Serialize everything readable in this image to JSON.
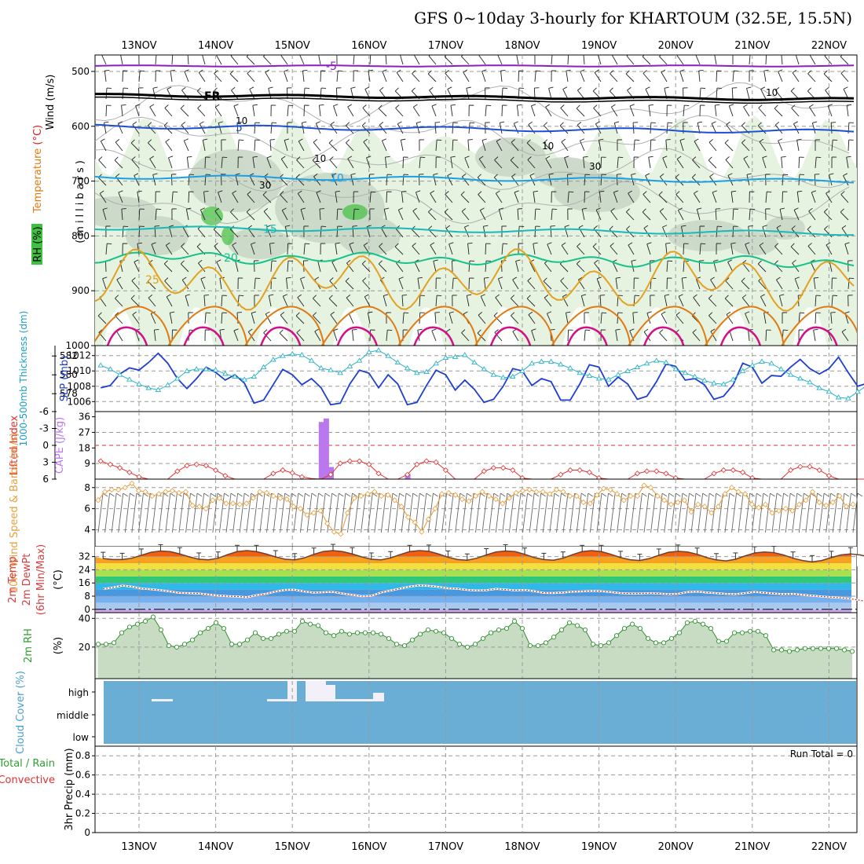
{
  "title": "GFS 0~10day 3-hourly for KHARTOUM (32.5E, 15.5N)",
  "date_labels": [
    "13NOV",
    "14NOV",
    "15NOV",
    "16NOV",
    "17NOV",
    "18NOV",
    "19NOV",
    "20NOV",
    "21NOV",
    "22NOV"
  ],
  "colors": {
    "purple": "#8a1fc2",
    "black": "#000000",
    "blue": "#1f4fd0",
    "sky": "#1aa0e6",
    "teal": "#1bb8b8",
    "green": "#14c28a",
    "orange": "#e5a020",
    "darkorange": "#e07a14",
    "magenta": "#d40f8a",
    "rhgreen": "#40c040",
    "cloudblue": "#6aaed6",
    "slp": "#1f3fd0",
    "thick": "#2ab4c4",
    "li": "#e03030",
    "cape": "#bb77ee",
    "wind": "#e8a040"
  },
  "chart_data": [
    {
      "id": "upper_air",
      "type": "contour",
      "ylabel_parts": [
        "RH (%)",
        "Temperature",
        "(°C)",
        "Wind",
        "(m/s)",
        "(millibars)"
      ],
      "y_ticks": [
        "500",
        "600",
        "700",
        "800",
        "900",
        "1000"
      ],
      "ylim": [
        1000,
        470
      ],
      "temperature_contours": [
        {
          "label": "-5",
          "value": -5,
          "level_mb": 490
        },
        {
          "label": "FR",
          "value": 0,
          "level_mb": 543
        },
        {
          "label": "5",
          "value": 5,
          "level_mb": 600
        },
        {
          "label": "10",
          "value": 10,
          "level_mb": 692
        },
        {
          "label": "15",
          "value": 15,
          "level_mb": 785
        },
        {
          "label": "20",
          "value": 20,
          "level_mb": 838
        },
        {
          "label": "25",
          "value": 25,
          "level_mb": 880
        }
      ],
      "rh_labels": [
        "10",
        "30"
      ]
    },
    {
      "id": "thickness_slp",
      "type": "line",
      "ylabel_left": "1000-500mb Thickness (dm)",
      "ylabel_right": "SLP (mb)",
      "left_ticks": [
        "582",
        "580",
        "578"
      ],
      "right_ticks": [
        "1012",
        "1010",
        "1008",
        "1006"
      ],
      "series": [
        {
          "name": "SLP (mb)",
          "values": [
            1007.8,
            1008.1,
            1009.6,
            1010.4,
            1010.1,
            1011.1,
            1012.3,
            1011.0,
            1009.0,
            1007.7,
            1009.0,
            1010.5,
            1009.8,
            1008.8,
            1009.5,
            1008.4,
            1005.8,
            1006.2,
            1008.2,
            1010.2,
            1009.5,
            1008.2,
            1009.0,
            1007.8,
            1005.6,
            1005.8,
            1008.3,
            1010.1,
            1009.7,
            1007.8,
            1009.5,
            1008.3,
            1005.6,
            1005.9,
            1008.1,
            1010.1,
            1009.5,
            1007.5,
            1008.8,
            1007.6,
            1005.9,
            1006.3,
            1008.0,
            1010.3,
            1010.0,
            1008.1,
            1009.0,
            1008.6,
            1006.2,
            1006.2,
            1008.3,
            1010.8,
            1010.5,
            1008.0,
            1009.2,
            1008.3,
            1006.3,
            1006.7,
            1008.6,
            1010.9,
            1010.6,
            1008.8,
            1009.0,
            1008.2,
            1006.3,
            1006.7,
            1008.2,
            1011.0,
            1010.5,
            1008.4,
            1009.4,
            1009.3,
            1010.5,
            1011.5,
            1010.3,
            1009.6,
            1010.3,
            1011.8,
            1009.8,
            1008.0,
            1008.4,
            1010.7,
            1011.0,
            1009.1,
            1009.3,
            1007.2,
            1007.1,
            1009.1,
            1009.8,
            1010.3,
            1009.4,
            1010.2,
            1012.0
          ]
        },
        {
          "name": "1000-500mb Thickness (dm)",
          "values": [
            581.0,
            580.6,
            580.0,
            579.5,
            579.0,
            578.6,
            578.4,
            578.9,
            579.6,
            580.4,
            580.6,
            580.6,
            580.5,
            580.1,
            579.8,
            579.5,
            579.8,
            580.8,
            581.6,
            582.0,
            582.2,
            582.1,
            581.5,
            580.7,
            580.5,
            580.2,
            580.9,
            581.5,
            582.4,
            582.6,
            582.0,
            581.3,
            580.7,
            580.2,
            580.3,
            581.2,
            581.8,
            581.9,
            582.1,
            581.3,
            580.6,
            580.0,
            579.7,
            579.8,
            580.4,
            581.2,
            581.4,
            581.4,
            581.1,
            580.7,
            580.2,
            579.9,
            579.6,
            579.5,
            580.0,
            580.4,
            580.8,
            581.2,
            581.5,
            581.3,
            580.6,
            580.2,
            579.8,
            579.4,
            579.1,
            579.0,
            579.5,
            580.4,
            581.0,
            581.4,
            581.2,
            580.6,
            580.0,
            579.6,
            579.2,
            578.6,
            578.2,
            577.6,
            577.5,
            578.2,
            578.9,
            579.4,
            579.3,
            578.6,
            577.9,
            577.2,
            576.7,
            576.9,
            577.4,
            577.9,
            577.8,
            577.3,
            576.8,
            576.5,
            576.5,
            577.0
          ]
        }
      ]
    },
    {
      "id": "stability",
      "type": "bar+line",
      "ylabel_left": "Lifted Index",
      "ylabel_right": "CAPE (J/kg)",
      "left_ticks": [
        "-6",
        "-3",
        "0",
        "3",
        "6"
      ],
      "right_ticks": [
        "36",
        "27",
        "18",
        "9"
      ],
      "series": [
        {
          "name": "CAPE (J/kg)",
          "bars": [
            {
              "t": 23.0,
              "value": 33
            },
            {
              "t": 23.5,
              "value": 35
            },
            {
              "t": 24.0,
              "value": 7
            },
            {
              "t": 32.0,
              "value": 3
            }
          ]
        },
        {
          "name": "Lifted Index",
          "values": [
            2.8,
            3.4,
            4.0,
            4.8,
            5.6,
            6.0,
            6.0,
            6.0,
            4.6,
            3.6,
            3.4,
            3.6,
            4.4,
            5.4,
            6.0,
            6.0,
            6.0,
            6.0,
            5.0,
            4.4,
            4.9,
            5.6,
            5.9,
            6.0,
            5.2,
            3.2,
            2.8,
            2.8,
            3.4,
            5.0,
            6.0,
            6.0,
            5.2,
            3.4,
            2.8,
            3.0,
            4.4,
            6.0,
            6.0,
            6.0,
            4.6,
            4.0,
            4.0,
            4.4,
            5.8,
            6.0,
            6.0,
            6.0,
            5.2,
            4.4,
            4.4,
            4.8,
            5.8,
            6.0,
            6.0,
            6.0,
            5.0,
            4.6,
            4.6,
            5.0,
            5.8,
            6.0,
            6.0,
            6.0,
            5.0,
            4.4,
            4.4,
            4.8,
            5.8,
            6.0,
            6.0,
            6.0,
            4.4,
            3.8,
            3.8,
            4.4,
            5.4,
            6.0,
            6.0,
            6.0,
            6.0,
            6.0,
            6.0,
            6.0,
            6.0,
            6.0,
            6.0,
            6.0,
            6.0,
            6.0,
            6.0,
            6.0,
            6.0
          ]
        }
      ]
    },
    {
      "id": "wind10m",
      "type": "line",
      "ylabel": "10m Wind Speed & Barbs (m/s)",
      "ticks": [
        "8",
        "6",
        "4"
      ],
      "series": [
        {
          "name": "10m Wind Speed",
          "values": [
            6.8,
            7.6,
            7.8,
            7.8,
            8.0,
            8.4,
            7.7,
            7.6,
            7.2,
            7.4,
            7.6,
            7.7,
            7.5,
            7.6,
            6.3,
            6.2,
            6.0,
            6.8,
            7.0,
            6.5,
            6.5,
            6.4,
            6.5,
            7.0,
            7.6,
            7.5,
            7.2,
            7.0,
            6.9,
            6.2,
            6.0,
            5.4,
            5.6,
            5.8,
            4.6,
            3.8,
            3.6,
            5.6,
            7.0,
            7.2,
            7.4,
            7.6,
            7.2,
            7.3,
            6.8,
            6.2,
            5.2,
            4.7,
            3.8,
            5.0,
            6.0,
            7.4,
            7.5,
            7.3,
            6.9,
            6.7,
            7.2,
            7.6,
            7.2,
            6.9,
            6.5,
            7.0,
            7.5,
            7.7,
            7.8,
            7.6,
            7.6,
            7.4,
            7.8,
            7.6,
            7.2,
            7.2,
            6.6,
            6.5,
            7.3,
            7.9,
            7.8,
            7.4,
            6.8,
            7.2,
            7.2,
            8.2,
            8.0,
            7.2,
            6.8,
            6.4,
            6.6,
            6.8,
            5.7,
            6.4,
            6.2,
            5.6,
            6.2,
            7.4,
            8.0,
            7.6,
            7.4,
            6.4,
            6.1,
            6.4,
            5.6,
            5.8,
            6.0,
            5.8,
            6.4,
            6.8,
            7.6,
            6.6,
            6.3,
            6.6,
            7.2,
            6.2,
            6.4
          ]
        }
      ]
    },
    {
      "id": "temp2m",
      "type": "area+line",
      "ylabel_parts": [
        "2m Temp",
        "2m DewPt",
        "(6hr Min/Max)"
      ],
      "ylabel_right": "(°C)",
      "ticks": [
        "32",
        "24",
        "16",
        "8",
        "0"
      ],
      "series": [
        {
          "name": "2m Temp",
          "values": [
            33.0,
            33.2,
            32.6,
            32.0,
            31.8,
            30.8,
            30.2,
            30.2,
            31.0,
            32.8,
            34.6,
            35.4,
            35.0,
            33.6,
            31.8,
            30.4,
            30.0,
            31.0,
            33.2,
            35.0,
            35.6,
            35.0,
            33.6,
            31.8,
            30.4,
            30.0,
            31.2,
            33.4,
            35.1,
            35.6,
            35.0,
            33.6,
            31.8,
            30.4,
            30.0,
            31.2,
            33.2,
            35.0,
            35.6,
            35.2,
            33.6,
            31.6,
            30.2,
            29.8,
            31.0,
            33.0,
            34.8,
            35.4,
            35.0,
            33.4,
            31.4,
            30.2,
            29.8,
            31.0,
            33.2,
            35.0,
            35.6,
            35.0,
            33.4,
            31.4,
            30.1,
            29.6,
            30.8,
            32.8,
            34.6,
            35.2,
            34.8,
            33.4,
            31.4,
            30.0,
            29.4,
            30.4,
            32.4,
            34.2,
            34.8,
            34.4,
            33.0,
            31.0,
            29.6,
            28.8,
            29.6,
            31.4,
            33.0,
            33.6,
            33.0,
            31.6,
            29.8,
            28.2,
            27.0,
            26.2,
            26.0
          ]
        },
        {
          "name": "2m DewPt",
          "values": [
            10.2,
            10.4,
            10.6,
            10.8,
            11.4,
            12.4,
            13.2,
            14.4,
            13.8,
            12.6,
            12.2,
            11.6,
            10.8,
            10.0,
            9.8,
            9.6,
            9.0,
            8.4,
            8.0,
            7.8,
            7.4,
            8.6,
            9.4,
            10.8,
            11.8,
            11.9,
            10.8,
            10.1,
            10.4,
            10.6,
            9.6,
            8.8,
            8.0,
            8.2,
            10.2,
            11.4,
            12.6,
            13.8,
            14.5,
            14.2,
            13.6,
            12.8,
            12.5,
            11.8,
            11.4,
            11.6,
            12.4,
            12.0,
            11.5,
            11.8,
            11.0,
            10.0,
            9.9,
            10.2,
            10.7,
            10.9,
            11.2,
            11.0,
            10.5,
            9.8,
            9.6,
            9.6,
            9.8,
            9.6,
            9.2,
            9.4,
            10.5,
            10.8,
            10.2,
            9.8,
            9.4,
            9.2,
            9.8,
            10.6,
            10.1,
            9.6,
            9.2,
            9.4,
            8.8,
            8.3,
            7.8,
            7.4,
            7.0,
            6.4,
            5.5,
            4.5,
            3.8,
            3.0,
            2.4,
            1.8,
            1.2,
            0.8,
            0.4,
            0.0,
            -0.4,
            -1.0
          ]
        }
      ]
    },
    {
      "id": "rh2m",
      "type": "area+line",
      "ylabel": "2m RH",
      "ylabel_right": "(%)",
      "ticks": [
        "40",
        "20"
      ],
      "series": [
        {
          "name": "2m RH",
          "values": [
            22,
            22,
            23,
            30,
            34,
            36,
            38,
            41,
            32,
            21,
            20,
            22,
            25,
            30,
            33,
            37,
            33,
            22,
            22,
            25,
            30,
            26,
            26,
            29,
            31,
            31,
            38,
            36,
            35,
            30,
            28,
            31,
            29,
            30,
            30,
            30,
            29,
            26,
            22,
            21,
            25,
            29,
            32,
            31,
            30,
            26,
            22,
            20,
            22,
            26,
            30,
            32,
            33,
            38,
            33,
            21,
            21,
            23,
            27,
            32,
            37,
            35,
            32,
            22,
            21,
            23,
            28,
            33,
            36,
            33,
            26,
            23,
            23,
            26,
            30,
            37,
            38,
            36,
            33,
            24,
            24,
            30,
            30,
            31,
            31,
            28,
            18,
            18,
            17,
            18,
            19,
            19,
            19,
            19,
            19,
            18,
            17
          ]
        }
      ]
    },
    {
      "id": "cloud",
      "type": "bar",
      "ylabel": "Cloud Cover (%)",
      "levels": [
        "high",
        "middle",
        "low"
      ]
    },
    {
      "id": "precip",
      "type": "bar",
      "ylabel_parts": [
        "Total / Rain",
        "Convective",
        "3hr Precip (mm)"
      ],
      "ticks": [
        "0.8",
        "0.6",
        "0.4",
        "0.2",
        "0"
      ],
      "ylim": [
        0,
        0.9
      ],
      "values": [],
      "run_total": "Run Total = 0"
    }
  ]
}
